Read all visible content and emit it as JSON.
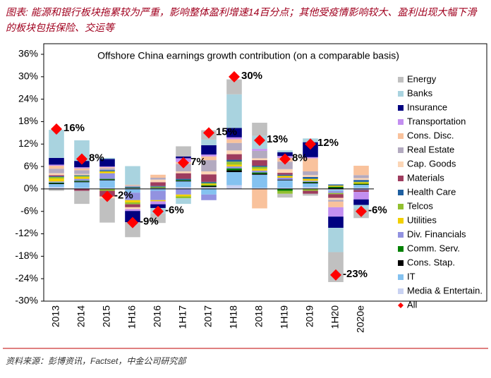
{
  "caption": "图表: 能源和银行板块拖累较为严重，影响整体盈利增速14百分点；其他受疫情影响较大、盈利出现大幅下滑的板块包括保险、交运等",
  "source": "资料来源：彭博资讯，Factset，中金公司研究部",
  "chart_data": {
    "type": "bar",
    "stacked": true,
    "title": "Offshore China earnings growth contribution (on a comparable basis)",
    "categories": [
      "2013",
      "2014",
      "2015",
      "1H16",
      "2016",
      "1H17",
      "2017",
      "1H18",
      "2018",
      "1H19",
      "2019",
      "1H20",
      "2020e"
    ],
    "ylim": [
      -30,
      36
    ],
    "yticks": [
      {
        "value": 36,
        "label": "36%"
      },
      {
        "value": 30,
        "label": "30%"
      },
      {
        "value": 24,
        "label": "24%"
      },
      {
        "value": 18,
        "label": "18%"
      },
      {
        "value": 12,
        "label": "12%"
      },
      {
        "value": 6,
        "label": "6%"
      },
      {
        "value": 0,
        "label": "0%"
      },
      {
        "value": -6,
        "label": "-6%"
      },
      {
        "value": -12,
        "label": "-12%"
      },
      {
        "value": -18,
        "label": "-18%"
      },
      {
        "value": -24,
        "label": "-24%"
      },
      {
        "value": -30,
        "label": "-30%"
      }
    ],
    "series": [
      {
        "name": "Energy",
        "color": "#c0c0c0",
        "values": [
          -0.5,
          -3.5,
          -6.5,
          -4,
          -2.5,
          2.7,
          2.5,
          4,
          3.5,
          -1,
          -0.5,
          -8,
          -2.5
        ]
      },
      {
        "name": "Banks",
        "color": "#a9d3df",
        "values": [
          7.5,
          5.5,
          0.3,
          5,
          -1.5,
          -1.5,
          1.5,
          9,
          3.5,
          0.5,
          1,
          -6.5,
          -1
        ]
      },
      {
        "name": "Insurance",
        "color": "#000080",
        "values": [
          1.8,
          1.7,
          2,
          -3,
          -1,
          0.5,
          2.5,
          2.5,
          0,
          1,
          4,
          -3,
          -1.5
        ]
      },
      {
        "name": "Transportation",
        "color": "#c38ff0",
        "values": [
          0.3,
          0.3,
          0.2,
          -0.5,
          -0.8,
          1,
          0.5,
          0.5,
          0.5,
          0.5,
          0.3,
          -2.5,
          -2
        ]
      },
      {
        "name": "Cons. Disc.",
        "color": "#f9c29c",
        "values": [
          0.8,
          0.5,
          0.3,
          0.2,
          0.8,
          0.5,
          1,
          1,
          -5.2,
          1,
          3.5,
          -1.5,
          2.5
        ]
      },
      {
        "name": "Real Estate",
        "color": "#b3aac0",
        "values": [
          1.2,
          1,
          0.5,
          0.3,
          0.5,
          2,
          3,
          2,
          2,
          2,
          1,
          -0.5,
          0.8
        ]
      },
      {
        "name": "Cap. Goods",
        "color": "#fcd6b6",
        "values": [
          0.5,
          0.3,
          -0.5,
          -0.5,
          0.7,
          0.5,
          0.8,
          1,
          0.5,
          1,
          0.5,
          -0.5,
          0.5
        ]
      },
      {
        "name": "Materials",
        "color": "#9e3c5e",
        "values": [
          0.3,
          -0.5,
          -1.5,
          -0.8,
          1,
          1.5,
          2,
          1.5,
          1.5,
          0.5,
          -0.8,
          -1,
          -0.5
        ]
      },
      {
        "name": "Health Care",
        "color": "#1f5fa0",
        "values": [
          0.2,
          0.2,
          0.3,
          0.2,
          0.2,
          0.3,
          0.3,
          0.5,
          0.3,
          0.3,
          0.5,
          0.3,
          0.5
        ]
      },
      {
        "name": "Telcos",
        "color": "#92c030",
        "values": [
          0.4,
          0.3,
          -0.5,
          -0.5,
          0.2,
          -0.5,
          0.3,
          0.8,
          0.5,
          -0.8,
          -0.5,
          -0.3,
          0.2
        ]
      },
      {
        "name": "Utilities",
        "color": "#f2d000",
        "values": [
          0.8,
          0.5,
          0.5,
          -0.6,
          -0.3,
          -0.5,
          0.3,
          0.5,
          0.5,
          0.5,
          0.5,
          0.3,
          0.3
        ]
      },
      {
        "name": "Div. Financials",
        "color": "#9292e0",
        "values": [
          0.3,
          0.5,
          1.5,
          -2,
          -2.5,
          -1.5,
          -1.5,
          0.5,
          0.5,
          0.5,
          0.3,
          -0.5,
          -0.3
        ]
      },
      {
        "name": "Comm. Serv.",
        "color": "#008000",
        "values": [
          0.2,
          0.2,
          0.2,
          0.1,
          0.1,
          0.2,
          0.2,
          0.5,
          0.3,
          -0.5,
          0.2,
          0.3,
          0.2
        ]
      },
      {
        "name": "Cons. Stap.",
        "color": "#000000",
        "values": [
          0.2,
          0.2,
          0.2,
          0.1,
          0.1,
          0.2,
          0.3,
          0.5,
          0.3,
          0.2,
          0.2,
          0.3,
          0.1
        ]
      },
      {
        "name": "IT",
        "color": "#84c2f0",
        "values": [
          0.8,
          1.5,
          2,
          -1,
          -0.5,
          1.5,
          -1.5,
          3.5,
          3.5,
          2,
          1,
          -0.3,
          0.8
        ]
      },
      {
        "name": "Media & Entertain.",
        "color": "#c9d2f2",
        "values": [
          0.5,
          0.3,
          0.3,
          0.2,
          0.2,
          0.5,
          0.5,
          1,
          0.3,
          0.3,
          0.5,
          -0.3,
          0.3
        ]
      },
      {
        "name": "All",
        "type": "marker",
        "color": "#ff0000",
        "values": [
          16,
          8,
          -2,
          -9,
          -6,
          7,
          15,
          30,
          13,
          8,
          12,
          -23,
          -6
        ],
        "value_labels": [
          "16%",
          "8%",
          "-2%",
          "-9%",
          "-6%",
          "7%",
          "15%",
          "30%",
          "13%",
          "8%",
          "12%",
          "-23%",
          "-6%"
        ]
      }
    ]
  }
}
